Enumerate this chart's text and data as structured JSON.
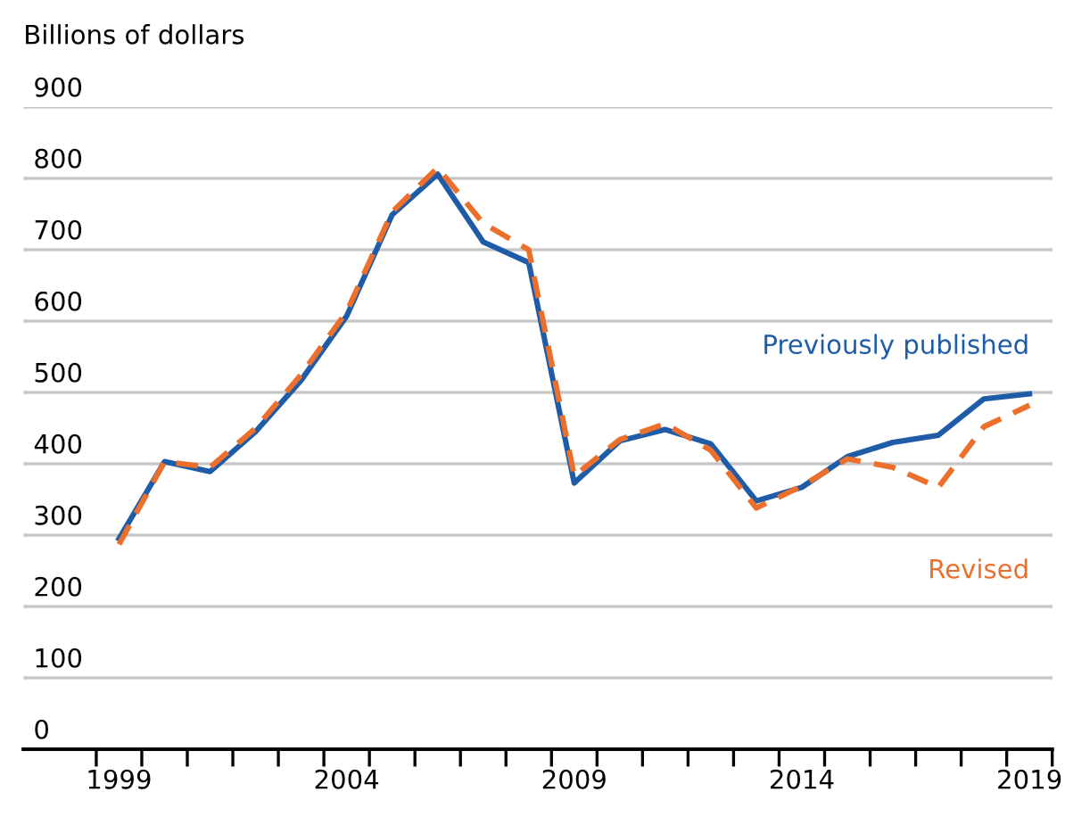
{
  "chart_data": {
    "type": "line",
    "ylabel": "Billions of dollars",
    "x": [
      1999,
      2000,
      2001,
      2002,
      2003,
      2004,
      2005,
      2006,
      2007,
      2008,
      2009,
      2010,
      2011,
      2012,
      2013,
      2014,
      2015,
      2016,
      2017,
      2018,
      2019
    ],
    "series": [
      {
        "name": "Previously published",
        "color": "#1f5ca8",
        "line_style": "solid",
        "values": [
          295,
          403,
          389,
          445,
          517,
          607,
          749,
          806,
          711,
          682,
          373,
          432,
          448,
          428,
          348,
          367,
          410,
          430,
          440,
          491,
          498
        ]
      },
      {
        "name": "Revised",
        "color": "#ec6f2c",
        "line_style": "dashed",
        "values": [
          287,
          403,
          395,
          450,
          525,
          613,
          753,
          815,
          737,
          700,
          383,
          434,
          456,
          419,
          338,
          369,
          407,
          395,
          367,
          452,
          482
        ]
      }
    ],
    "xlim": [
      1996.9,
      2019.5
    ],
    "xticks": [
      {
        "value": 1998.5,
        "label": null
      },
      1999,
      {
        "value": 1999.5,
        "label": null
      },
      {
        "value": 2000.5,
        "label": null
      },
      {
        "value": 2001.5,
        "label": null
      },
      {
        "value": 2002.5,
        "label": null
      },
      {
        "value": 2003.5,
        "label": null
      },
      2004,
      {
        "value": 2004.5,
        "label": null
      },
      {
        "value": 2005.5,
        "label": null
      },
      {
        "value": 2006.5,
        "label": null
      },
      {
        "value": 2007.5,
        "label": null
      },
      {
        "value": 2008.5,
        "label": null
      },
      2009,
      {
        "value": 2009.5,
        "label": null
      },
      {
        "value": 2010.5,
        "label": null
      },
      {
        "value": 2011.5,
        "label": null
      },
      {
        "value": 2012.5,
        "label": null
      },
      {
        "value": 2013.5,
        "label": null
      },
      2014,
      {
        "value": 2014.5,
        "label": null
      },
      {
        "value": 2015.5,
        "label": null
      },
      {
        "value": 2016.5,
        "label": null
      },
      {
        "value": 2017.5,
        "label": null
      },
      {
        "value": 2018.5,
        "label": null
      },
      2019,
      {
        "value": 2019.5,
        "label": null
      }
    ],
    "ylim": [
      0,
      900
    ],
    "yticks": [
      0,
      100,
      200,
      300,
      400,
      500,
      600,
      700,
      800,
      900
    ],
    "grid": "y",
    "legend": false,
    "marker": "none"
  }
}
